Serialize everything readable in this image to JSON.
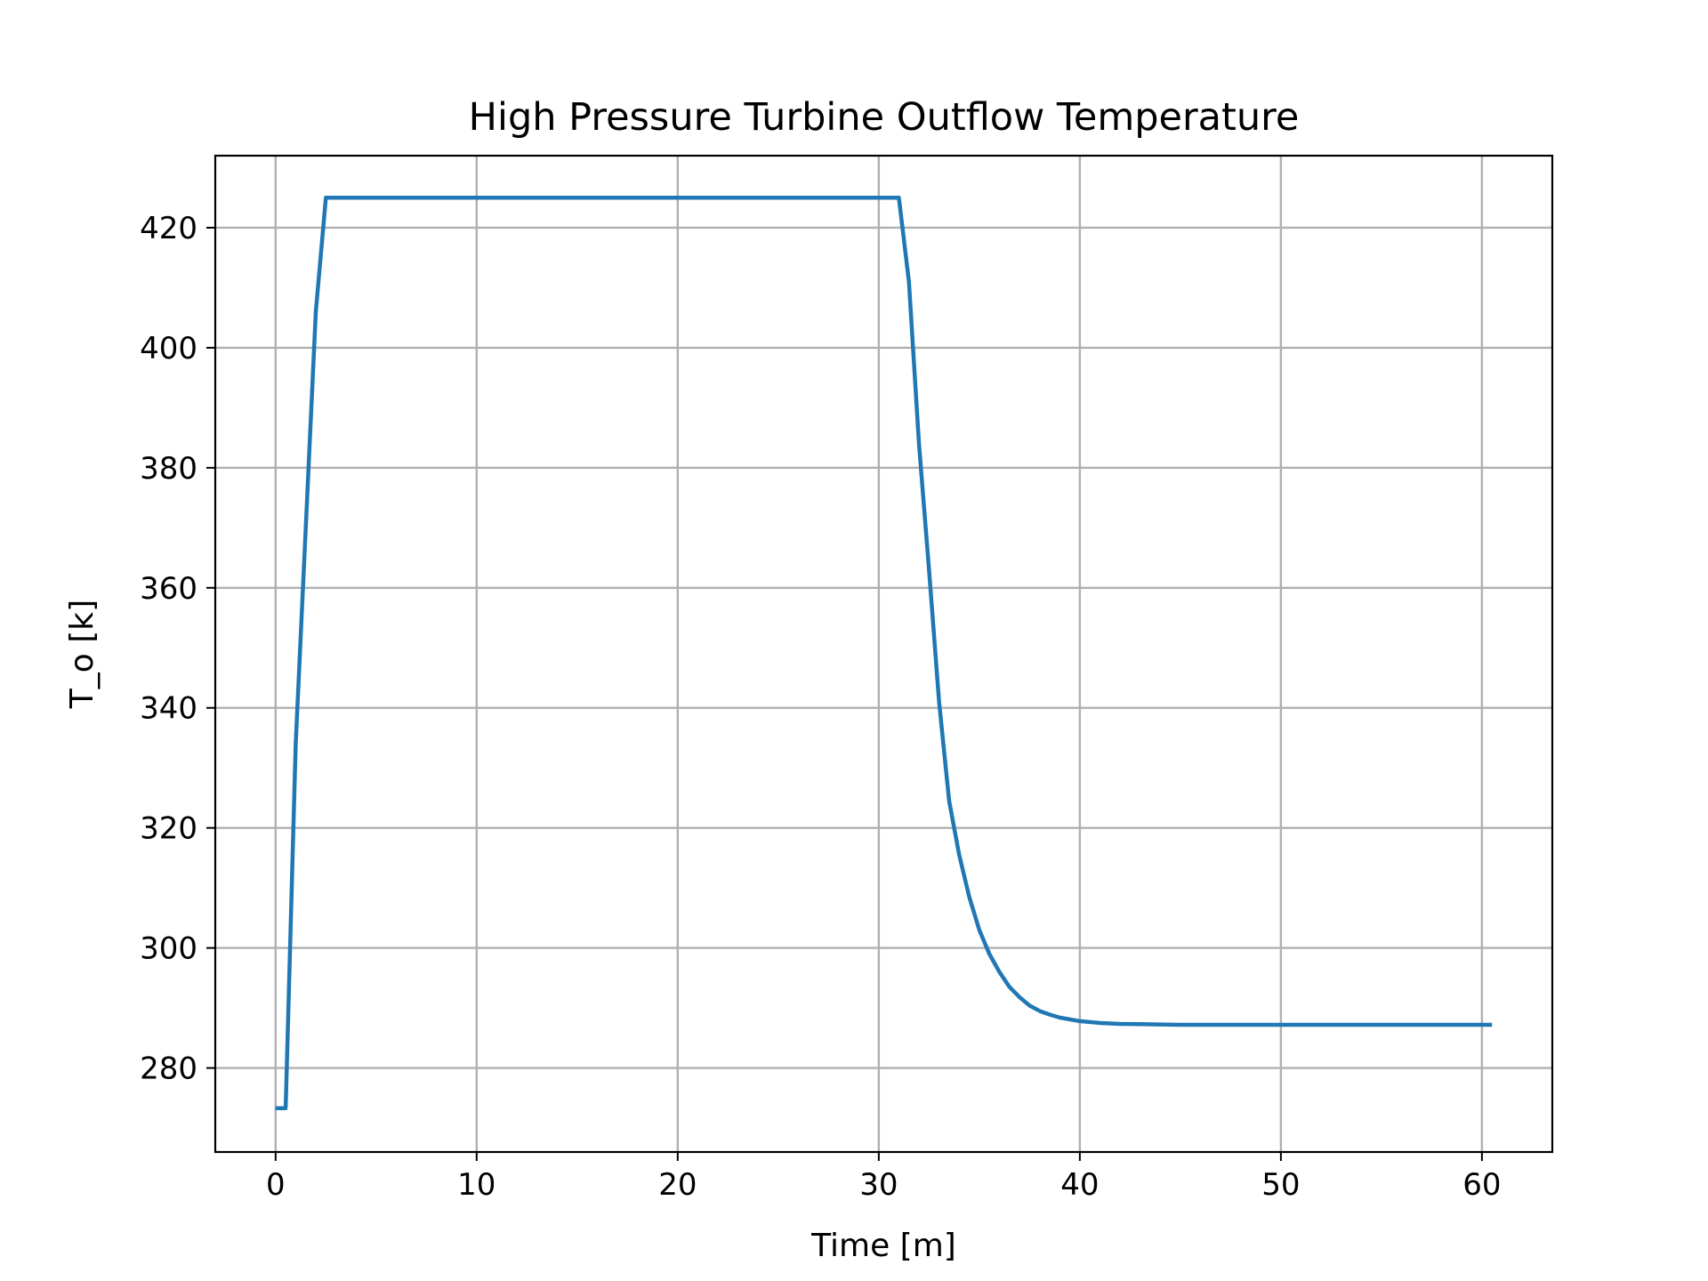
{
  "chart_data": {
    "type": "line",
    "title": "High Pressure Turbine Outflow Temperature",
    "xlabel": "Time [m]",
    "ylabel": "T_o [k]",
    "xlim": [
      -3,
      63.5
    ],
    "ylim": [
      266,
      432
    ],
    "xticks": [
      0,
      10,
      20,
      30,
      40,
      50,
      60
    ],
    "yticks": [
      280,
      300,
      320,
      340,
      360,
      380,
      400,
      420
    ],
    "grid": true,
    "legend": "none",
    "series": [
      {
        "color": "#1f77b4",
        "x": [
          0,
          0.5,
          1.0,
          1.5,
          2.0,
          2.5,
          31.0,
          31.5,
          32.0,
          32.5,
          33.0,
          33.5,
          34.0,
          34.5,
          35.0,
          35.5,
          36.0,
          36.5,
          37.0,
          37.5,
          38.0,
          38.5,
          39.0,
          39.5,
          40.0,
          41.0,
          42.0,
          43.0,
          44.0,
          45.0,
          47.0,
          50.0,
          55.0,
          60.5
        ],
        "y": [
          273.3,
          273.3,
          334.0,
          370.0,
          406.0,
          425.0,
          425.0,
          411.0,
          384.0,
          363.0,
          341.0,
          324.5,
          315.5,
          308.5,
          303.0,
          299.0,
          296.0,
          293.5,
          291.8,
          290.4,
          289.5,
          288.9,
          288.4,
          288.1,
          287.8,
          287.5,
          287.35,
          287.3,
          287.25,
          287.2,
          287.2,
          287.2,
          287.2,
          287.2
        ]
      }
    ]
  }
}
